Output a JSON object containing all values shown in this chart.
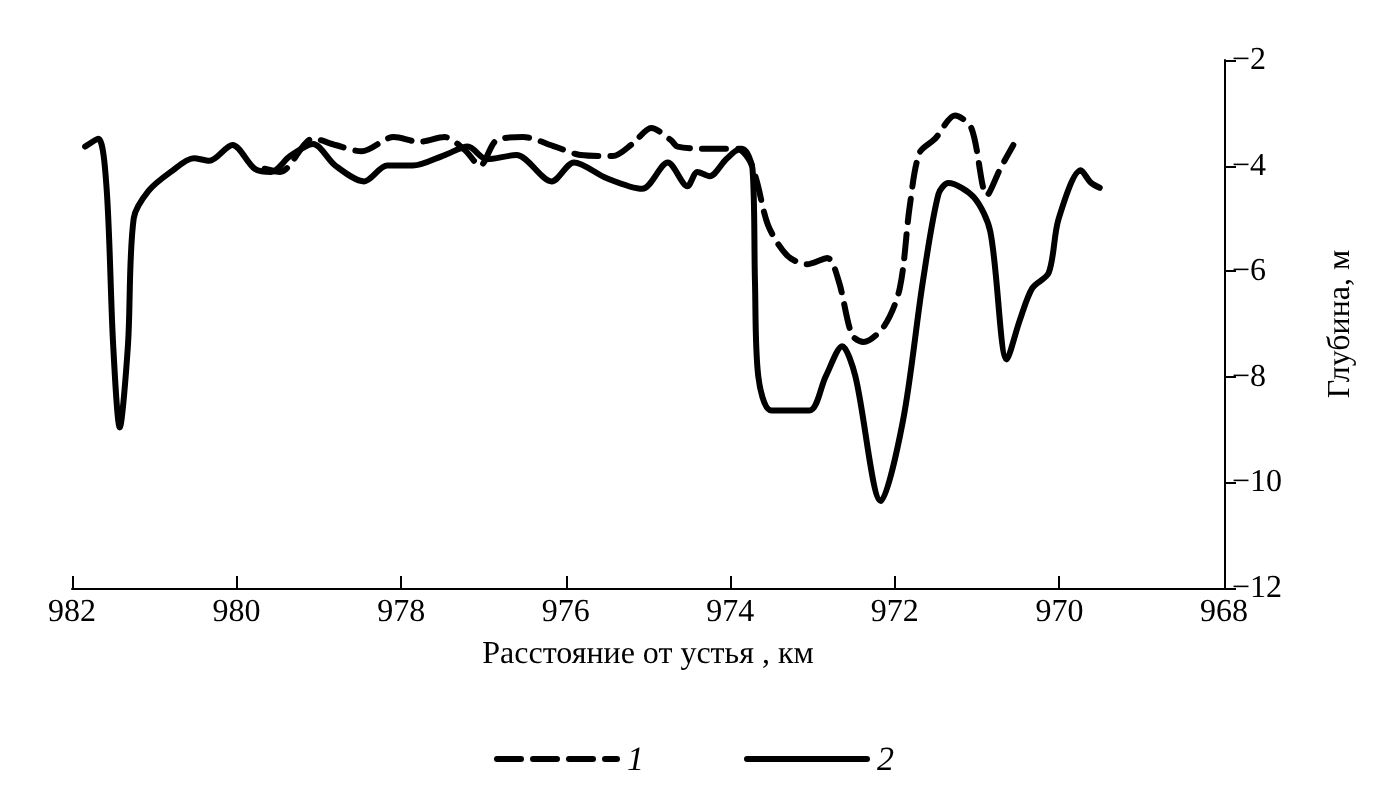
{
  "chart_data": {
    "type": "line",
    "xlabel": "Расстояние от устья , км",
    "ylabel": "Глубина, м",
    "xlim": [
      982,
      968
    ],
    "xticks": [
      982,
      980,
      978,
      976,
      974,
      972,
      970,
      968
    ],
    "ylim": [
      -12,
      -2
    ],
    "yticks": [
      -12,
      -10,
      -8,
      -6,
      -4,
      -2
    ],
    "grid": false,
    "legend": "bottom",
    "marker": "none",
    "series": [
      {
        "name": "1",
        "color": "#000000",
        "line_style": "dashed",
        "x": [
          979.66,
          979.47,
          979.07,
          978.8,
          978.48,
          978.09,
          977.78,
          977.47,
          977.23,
          977.04,
          976.84,
          976.52,
          976.13,
          975.82,
          975.43,
          975.19,
          974.96,
          974.72,
          974.64,
          974.25,
          973.86,
          973.7,
          973.54,
          973.31,
          973.07,
          972.82,
          972.68,
          972.52,
          972.38,
          972.13,
          971.94,
          971.82,
          971.7,
          971.51,
          971.27,
          971.07,
          970.88,
          970.72,
          970.56
        ],
        "values": [
          -4.06,
          -4.12,
          -3.49,
          -3.61,
          -3.73,
          -3.46,
          -3.55,
          -3.46,
          -3.7,
          -4.0,
          -3.52,
          -3.46,
          -3.64,
          -3.8,
          -3.82,
          -3.59,
          -3.29,
          -3.52,
          -3.64,
          -3.68,
          -3.68,
          -4.18,
          -5.13,
          -5.7,
          -5.87,
          -5.75,
          -6.2,
          -7.21,
          -7.34,
          -7.04,
          -6.32,
          -4.78,
          -3.76,
          -3.49,
          -3.05,
          -3.29,
          -4.56,
          -4.06,
          -3.61
        ]
      },
      {
        "name": "2",
        "color": "#000000",
        "line_style": "solid",
        "x": [
          981.84,
          981.68,
          981.58,
          981.5,
          981.42,
          981.32,
          981.25,
          981.07,
          980.8,
          980.52,
          980.33,
          980.05,
          979.78,
          979.58,
          979.35,
          979.07,
          978.8,
          978.45,
          978.17,
          977.86,
          977.47,
          977.19,
          976.96,
          976.6,
          976.17,
          975.9,
          975.5,
          975.07,
          974.76,
          974.52,
          974.4,
          974.25,
          974.05,
          973.9,
          973.73,
          973.7,
          973.66,
          973.5,
          973.04,
          972.84,
          972.64,
          972.48,
          972.17,
          971.9,
          971.66,
          971.47,
          971.35,
          971.04,
          970.84,
          970.64,
          970.48,
          970.33,
          970.13,
          970.01,
          969.74,
          969.62,
          969.51
        ],
        "values": [
          -3.64,
          -3.49,
          -4.42,
          -7.39,
          -8.96,
          -7.4,
          -5.0,
          -4.48,
          -4.12,
          -3.86,
          -3.91,
          -3.61,
          -4.06,
          -4.12,
          -3.82,
          -3.59,
          -4.0,
          -4.3,
          -4.0,
          -4.0,
          -3.8,
          -3.64,
          -3.88,
          -3.8,
          -4.3,
          -3.94,
          -4.24,
          -4.44,
          -3.94,
          -4.39,
          -4.12,
          -4.2,
          -3.88,
          -3.7,
          -4.06,
          -6.2,
          -7.99,
          -8.64,
          -8.64,
          -7.99,
          -7.42,
          -7.99,
          -10.35,
          -8.82,
          -6.2,
          -4.54,
          -4.33,
          -4.6,
          -5.25,
          -7.67,
          -6.92,
          -6.32,
          -6.03,
          -5.01,
          -4.09,
          -4.32,
          -4.42
        ]
      }
    ]
  }
}
